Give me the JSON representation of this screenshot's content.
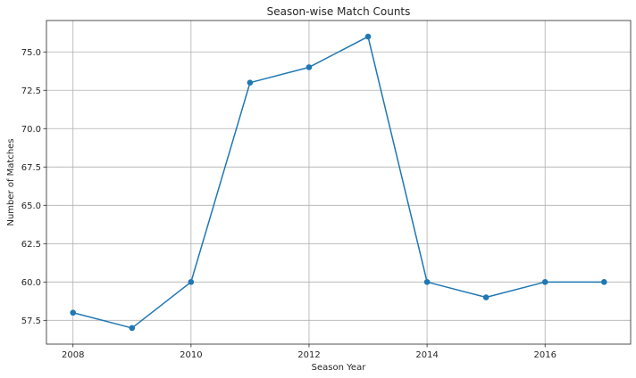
{
  "chart_data": {
    "type": "line",
    "title": "Season-wise Match Counts",
    "xlabel": "Season Year",
    "ylabel": "Number of Matches",
    "x": [
      2008,
      2009,
      2010,
      2011,
      2012,
      2013,
      2014,
      2015,
      2016,
      2017
    ],
    "series": [
      {
        "values": [
          58,
          57,
          60,
          73,
          74,
          76,
          60,
          59,
          60,
          60
        ],
        "color": "#1f77b4",
        "marker": "circle"
      }
    ],
    "xlim": [
      2007.55,
      2017.45
    ],
    "ylim": [
      55.95,
      77.05
    ],
    "xticks": [
      2008,
      2010,
      2012,
      2014,
      2016
    ],
    "xtick_labels": [
      "2008",
      "2010",
      "2012",
      "2014",
      "2016"
    ],
    "yticks": [
      57.5,
      60.0,
      62.5,
      65.0,
      67.5,
      70.0,
      72.5,
      75.0
    ],
    "ytick_labels": [
      "57.5",
      "60.0",
      "62.5",
      "65.0",
      "67.5",
      "70.0",
      "72.5",
      "75.0"
    ],
    "grid": true,
    "legend": "none"
  }
}
